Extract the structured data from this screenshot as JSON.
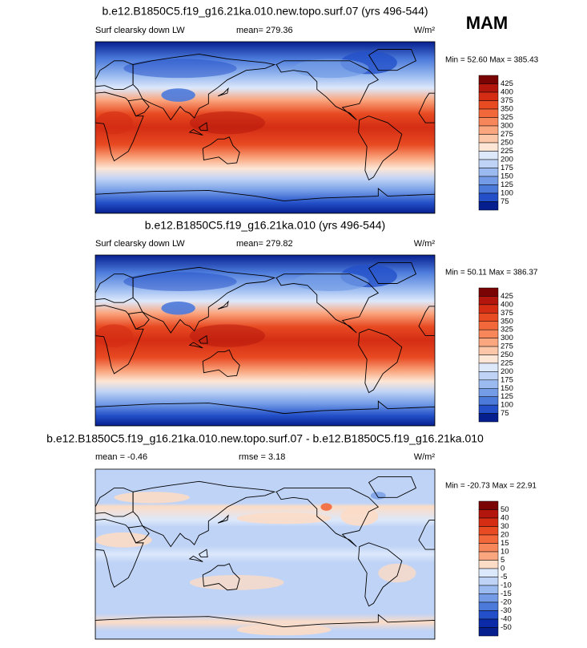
{
  "season": "MAM",
  "panels": [
    {
      "title": "b.e12.B1850C5.f19_g16.21ka.010.new.topo.surf.07 (yrs 496-544)",
      "subtitle": "Surf clearsky down LW",
      "mean": "mean= 279.36",
      "units": "W/m²",
      "minmax": "Min =  52.60 Max = 385.43",
      "levels": [
        425,
        400,
        375,
        350,
        325,
        300,
        275,
        250,
        225,
        200,
        175,
        150,
        125,
        100,
        75
      ],
      "colors": [
        "#7a0403",
        "#b3160c",
        "#d42d14",
        "#e84a22",
        "#f2683a",
        "#f7875a",
        "#faa67f",
        "#fcc6a8",
        "#fde6d6",
        "#dde8fb",
        "#bfd3f6",
        "#9bbbf0",
        "#749ce6",
        "#4b7adb",
        "#2350c8",
        "#061f8f"
      ]
    },
    {
      "title": "b.e12.B1850C5.f19_g16.21ka.010 (yrs 496-544)",
      "subtitle": "Surf clearsky down LW",
      "mean": "mean= 279.82",
      "units": "W/m²",
      "minmax": "Min =  50.11 Max = 386.37",
      "levels": [
        425,
        400,
        375,
        350,
        325,
        300,
        275,
        250,
        225,
        200,
        175,
        150,
        125,
        100,
        75
      ],
      "colors": [
        "#7a0403",
        "#b3160c",
        "#d42d14",
        "#e84a22",
        "#f2683a",
        "#f7875a",
        "#faa67f",
        "#fcc6a8",
        "#fde6d6",
        "#dde8fb",
        "#bfd3f6",
        "#9bbbf0",
        "#749ce6",
        "#4b7adb",
        "#2350c8",
        "#061f8f"
      ]
    },
    {
      "title": "b.e12.B1850C5.f19_g16.21ka.010.new.topo.surf.07 - b.e12.B1850C5.f19_g16.21ka.010",
      "subtitle": "mean =  -0.46",
      "mean": "rmse =   3.18",
      "units": "W/m²",
      "minmax": "Min = -20.73 Max =  22.91",
      "levels": [
        50,
        40,
        30,
        20,
        15,
        10,
        5,
        0,
        -5,
        -10,
        -15,
        -20,
        -30,
        -40,
        -50
      ],
      "colors": [
        "#7a0403",
        "#b3160c",
        "#d42d14",
        "#e84a22",
        "#f2683a",
        "#f7875a",
        "#faa67f",
        "#fcdcc6",
        "#dce8fb",
        "#bfd3f6",
        "#9bbbf0",
        "#749ce6",
        "#4b7adb",
        "#2350c8",
        "#0a2aa8",
        "#061f8f"
      ]
    }
  ]
}
